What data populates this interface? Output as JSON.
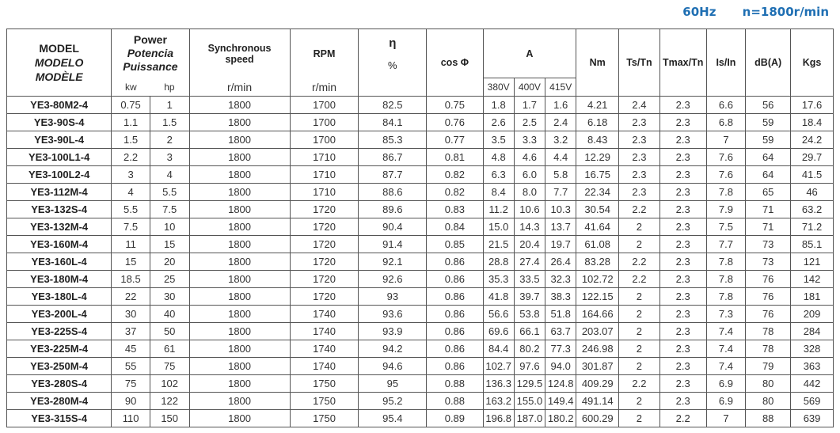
{
  "header": {
    "frequency": "60Hz",
    "speed": "n=1800r/min"
  },
  "columns": {
    "model": [
      "MODEL",
      "MODELO",
      "MODÈLE"
    ],
    "power": [
      "Power",
      "Potencia",
      "Puissance"
    ],
    "kw": "kw",
    "hp": "hp",
    "sync": [
      "Synchronous",
      "speed"
    ],
    "sync_unit": "r/min",
    "rpm": "RPM",
    "rpm_unit": "r/min",
    "eta": "η",
    "eta_unit": "%",
    "cos": "cos Φ",
    "amp": "A",
    "v380": "380V",
    "v400": "400V",
    "v415": "415V",
    "nm": "Nm",
    "tstn": "Ts/Tn",
    "tmax": "Tmax/Tn",
    "isin": "Is/In",
    "db": "dB(A)",
    "kgs": "Kgs"
  },
  "rows": [
    [
      "YE3-80M2-4",
      "0.75",
      "1",
      "1800",
      "1700",
      "82.5",
      "0.75",
      "1.8",
      "1.7",
      "1.6",
      "4.21",
      "2.4",
      "2.3",
      "6.6",
      "56",
      "17.6"
    ],
    [
      "YE3-90S-4",
      "1.1",
      "1.5",
      "1800",
      "1700",
      "84.1",
      "0.76",
      "2.6",
      "2.5",
      "2.4",
      "6.18",
      "2.3",
      "2.3",
      "6.8",
      "59",
      "18.4"
    ],
    [
      "YE3-90L-4",
      "1.5",
      "2",
      "1800",
      "1700",
      "85.3",
      "0.77",
      "3.5",
      "3.3",
      "3.2",
      "8.43",
      "2.3",
      "2.3",
      "7",
      "59",
      "24.2"
    ],
    [
      "YE3-100L1-4",
      "2.2",
      "3",
      "1800",
      "1710",
      "86.7",
      "0.81",
      "4.8",
      "4.6",
      "4.4",
      "12.29",
      "2.3",
      "2.3",
      "7.6",
      "64",
      "29.7"
    ],
    [
      "YE3-100L2-4",
      "3",
      "4",
      "1800",
      "1710",
      "87.7",
      "0.82",
      "6.3",
      "6.0",
      "5.8",
      "16.75",
      "2.3",
      "2.3",
      "7.6",
      "64",
      "41.5"
    ],
    [
      "YE3-112M-4",
      "4",
      "5.5",
      "1800",
      "1710",
      "88.6",
      "0.82",
      "8.4",
      "8.0",
      "7.7",
      "22.34",
      "2.3",
      "2.3",
      "7.8",
      "65",
      "46"
    ],
    [
      "YE3-132S-4",
      "5.5",
      "7.5",
      "1800",
      "1720",
      "89.6",
      "0.83",
      "11.2",
      "10.6",
      "10.3",
      "30.54",
      "2.2",
      "2.3",
      "7.9",
      "71",
      "63.2"
    ],
    [
      "YE3-132M-4",
      "7.5",
      "10",
      "1800",
      "1720",
      "90.4",
      "0.84",
      "15.0",
      "14.3",
      "13.7",
      "41.64",
      "2",
      "2.3",
      "7.5",
      "71",
      "71.2"
    ],
    [
      "YE3-160M-4",
      "11",
      "15",
      "1800",
      "1720",
      "91.4",
      "0.85",
      "21.5",
      "20.4",
      "19.7",
      "61.08",
      "2",
      "2.3",
      "7.7",
      "73",
      "85.1"
    ],
    [
      "YE3-160L-4",
      "15",
      "20",
      "1800",
      "1720",
      "92.1",
      "0.86",
      "28.8",
      "27.4",
      "26.4",
      "83.28",
      "2.2",
      "2.3",
      "7.8",
      "73",
      "121"
    ],
    [
      "YE3-180M-4",
      "18.5",
      "25",
      "1800",
      "1720",
      "92.6",
      "0.86",
      "35.3",
      "33.5",
      "32.3",
      "102.72",
      "2.2",
      "2.3",
      "7.8",
      "76",
      "142"
    ],
    [
      "YE3-180L-4",
      "22",
      "30",
      "1800",
      "1720",
      "93",
      "0.86",
      "41.8",
      "39.7",
      "38.3",
      "122.15",
      "2",
      "2.3",
      "7.8",
      "76",
      "181"
    ],
    [
      "YE3-200L-4",
      "30",
      "40",
      "1800",
      "1740",
      "93.6",
      "0.86",
      "56.6",
      "53.8",
      "51.8",
      "164.66",
      "2",
      "2.3",
      "7.3",
      "76",
      "209"
    ],
    [
      "YE3-225S-4",
      "37",
      "50",
      "1800",
      "1740",
      "93.9",
      "0.86",
      "69.6",
      "66.1",
      "63.7",
      "203.07",
      "2",
      "2.3",
      "7.4",
      "78",
      "284"
    ],
    [
      "YE3-225M-4",
      "45",
      "61",
      "1800",
      "1740",
      "94.2",
      "0.86",
      "84.4",
      "80.2",
      "77.3",
      "246.98",
      "2",
      "2.3",
      "7.4",
      "78",
      "328"
    ],
    [
      "YE3-250M-4",
      "55",
      "75",
      "1800",
      "1740",
      "94.6",
      "0.86",
      "102.7",
      "97.6",
      "94.0",
      "301.87",
      "2",
      "2.3",
      "7.4",
      "79",
      "363"
    ],
    [
      "YE3-280S-4",
      "75",
      "102",
      "1800",
      "1750",
      "95",
      "0.88",
      "136.3",
      "129.5",
      "124.8",
      "409.29",
      "2.2",
      "2.3",
      "6.9",
      "80",
      "442"
    ],
    [
      "YE3-280M-4",
      "90",
      "122",
      "1800",
      "1750",
      "95.2",
      "0.88",
      "163.2",
      "155.0",
      "149.4",
      "491.14",
      "2",
      "2.3",
      "6.9",
      "80",
      "569"
    ],
    [
      "YE3-315S-4",
      "110",
      "150",
      "1800",
      "1750",
      "95.4",
      "0.89",
      "196.8",
      "187.0",
      "180.2",
      "600.29",
      "2",
      "2.2",
      "7",
      "88",
      "639"
    ]
  ]
}
